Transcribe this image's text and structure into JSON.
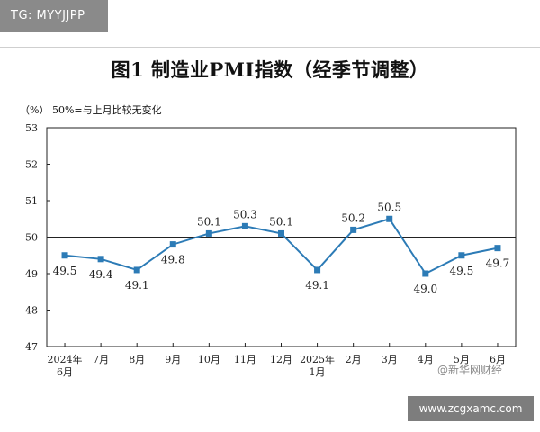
{
  "badge_text": "TG: MYYJJPP",
  "watermark_text": "@新华网财经",
  "url_badge": "www.zcgxamc.com",
  "chart_data": {
    "type": "line",
    "title": "图1  制造业PMI指数（经季节调整）",
    "subtitle": "（%）  50%=与上月比较无变化",
    "categories": [
      "2024年\n6月",
      "7月",
      "8月",
      "9月",
      "10月",
      "11月",
      "12月",
      "2025年\n1月",
      "2月",
      "3月",
      "4月",
      "5月",
      "6月"
    ],
    "series": [
      {
        "values": [
          49.5,
          49.4,
          49.1,
          49.8,
          50.1,
          50.3,
          50.1,
          49.1,
          50.2,
          50.5,
          49.0,
          49.5,
          49.7
        ]
      }
    ],
    "data_labels": [
      "49.5",
      "49.4",
      "49.1",
      "49.8",
      "50.1",
      "50.3",
      "50.1",
      "49.1",
      "50.2",
      "50.5",
      "49.0",
      "49.5",
      "49.7"
    ],
    "yticks": [
      "47",
      "48",
      "49",
      "50",
      "51",
      "52",
      "53"
    ],
    "ylim": [
      47,
      53
    ],
    "reference_line": 50,
    "line_color": "#2c7bb6",
    "grid": false
  }
}
